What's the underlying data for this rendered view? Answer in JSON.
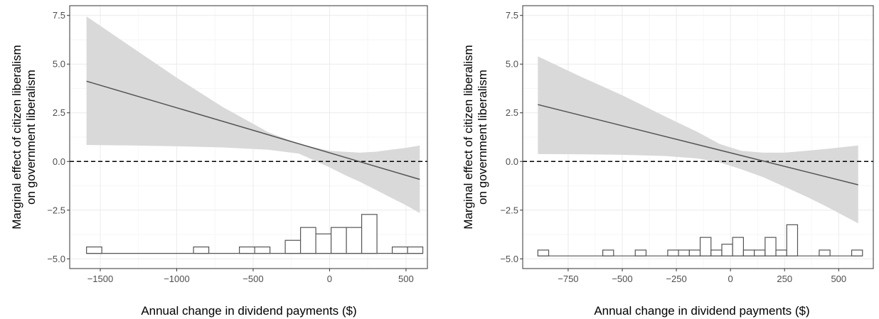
{
  "colors": {
    "band": "#d9d9d9",
    "line": "#555555",
    "grid_major": "#ebebeb",
    "grid_minor": "#f3f3f3",
    "frame": "#333333",
    "reference": "#000000",
    "histogram_stroke": "#555555",
    "histogram_fill": "#ffffff"
  },
  "chart_data": [
    {
      "type": "line",
      "xlabel": "Annual change in dividend payments ($)",
      "ylabel": "Marginal effect of citizen liberalism on government liberalism",
      "ylabel_lines": [
        "Marginal effect of citizen liberalism",
        "on government liberalism"
      ],
      "xlim": [
        -1700,
        640
      ],
      "ylim": [
        -5.5,
        8.0
      ],
      "xticks": [
        -1500,
        -1000,
        -500,
        0,
        500
      ],
      "xtick_labels": [
        "−1500",
        "−1000",
        "−500",
        "0",
        "500"
      ],
      "yticks": [
        7.5,
        5.0,
        2.5,
        0.0,
        -2.5,
        -5.0
      ],
      "ytick_labels": [
        "7.5",
        "5.0",
        "2.5",
        "0.0",
        "−2.5",
        "−5.0"
      ],
      "grid": true,
      "reference_line": {
        "y": 0,
        "style": "dashed"
      },
      "series": [
        {
          "x": [
            -1590,
            590
          ],
          "y": [
            4.12,
            -0.92
          ]
        }
      ],
      "confidence_band": {
        "x": [
          -1590,
          -1300,
          -1000,
          -700,
          -400,
          -200,
          0,
          100,
          200,
          300,
          400,
          500,
          590
        ],
        "upper": [
          7.45,
          5.9,
          4.3,
          2.8,
          1.5,
          0.9,
          0.55,
          0.5,
          0.45,
          0.5,
          0.6,
          0.7,
          0.82
        ],
        "lower": [
          0.85,
          0.82,
          0.78,
          0.72,
          0.6,
          0.4,
          -0.3,
          -0.7,
          -1.05,
          -1.45,
          -1.85,
          -2.25,
          -2.65
        ]
      },
      "histogram": {
        "baseline": -4.72,
        "bin_width": 100,
        "bins": [
          {
            "x0": -1590,
            "height": 0.33
          },
          {
            "x0": -890,
            "height": 0.33
          },
          {
            "x0": -590,
            "height": 0.33
          },
          {
            "x0": -490,
            "height": 0.33
          },
          {
            "x0": -290,
            "height": 0.67
          },
          {
            "x0": -190,
            "height": 1.33
          },
          {
            "x0": -90,
            "height": 1.0
          },
          {
            "x0": 10,
            "height": 1.33
          },
          {
            "x0": 110,
            "height": 1.33
          },
          {
            "x0": 210,
            "height": 2.0
          },
          {
            "x0": 410,
            "height": 0.33
          },
          {
            "x0": 510,
            "height": 0.33
          }
        ]
      }
    },
    {
      "type": "line",
      "xlabel": "Annual change in dividend payments ($)",
      "ylabel": "Marginal effect of citizen liberalism on government liberalism",
      "ylabel_lines": [
        "Marginal effect of citizen liberalism",
        "on government liberalism"
      ],
      "xlim": [
        -960,
        660
      ],
      "ylim": [
        -5.5,
        8.0
      ],
      "xticks": [
        -750,
        -500,
        -250,
        0,
        250,
        500
      ],
      "xtick_labels": [
        "−750",
        "−500",
        "−250",
        "0",
        "250",
        "500"
      ],
      "yticks": [
        7.5,
        5.0,
        2.5,
        0.0,
        -2.5,
        -5.0
      ],
      "ytick_labels": [
        "7.5",
        "5.0",
        "2.5",
        "0.0",
        "−2.5",
        "−5.0"
      ],
      "grid": true,
      "reference_line": {
        "y": 0,
        "style": "dashed"
      },
      "series": [
        {
          "x": [
            -890,
            590
          ],
          "y": [
            2.92,
            -1.2
          ]
        }
      ],
      "confidence_band": {
        "x": [
          -890,
          -700,
          -500,
          -300,
          -150,
          -50,
          50,
          150,
          250,
          350,
          450,
          590
        ],
        "upper": [
          5.4,
          4.4,
          3.4,
          2.3,
          1.5,
          0.9,
          0.55,
          0.45,
          0.45,
          0.55,
          0.65,
          0.82
        ],
        "lower": [
          0.38,
          0.37,
          0.34,
          0.28,
          0.15,
          -0.05,
          -0.4,
          -0.8,
          -1.3,
          -1.8,
          -2.35,
          -3.18
        ]
      },
      "histogram": {
        "baseline": -4.85,
        "bin_width": 50,
        "bins": [
          {
            "x0": -890,
            "height": 0.3
          },
          {
            "x0": -590,
            "height": 0.3
          },
          {
            "x0": -440,
            "height": 0.3
          },
          {
            "x0": -290,
            "height": 0.3
          },
          {
            "x0": -240,
            "height": 0.3
          },
          {
            "x0": -190,
            "height": 0.3
          },
          {
            "x0": -140,
            "height": 0.95
          },
          {
            "x0": -90,
            "height": 0.3
          },
          {
            "x0": -40,
            "height": 0.6
          },
          {
            "x0": 10,
            "height": 0.95
          },
          {
            "x0": 60,
            "height": 0.3
          },
          {
            "x0": 110,
            "height": 0.3
          },
          {
            "x0": 160,
            "height": 0.95
          },
          {
            "x0": 210,
            "height": 0.3
          },
          {
            "x0": 260,
            "height": 1.6
          },
          {
            "x0": 410,
            "height": 0.3
          },
          {
            "x0": 560,
            "height": 0.3
          }
        ]
      }
    }
  ]
}
